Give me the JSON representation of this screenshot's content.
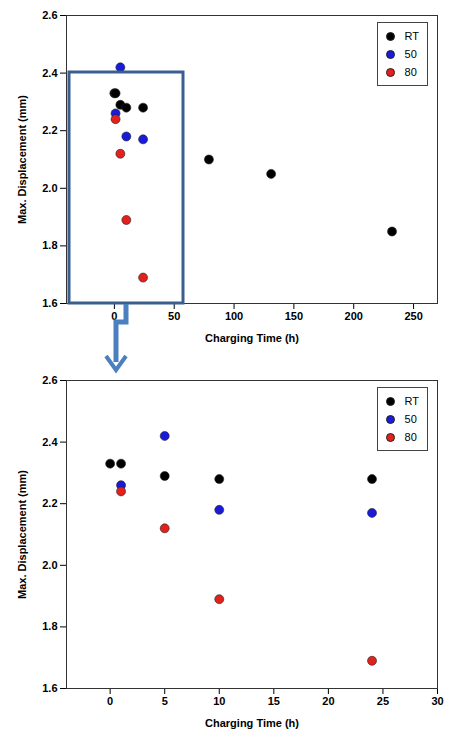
{
  "chart_data": [
    {
      "type": "scatter",
      "x_label": "Charging Time (h)",
      "y_label": "Max. Displacement (mm)",
      "xlim": [
        -40,
        270
      ],
      "xticks": [
        0,
        50,
        100,
        150,
        200,
        250
      ],
      "ylim": [
        1.6,
        2.6
      ],
      "yticks": [
        1.6,
        1.8,
        {
          "value": 2,
          "label": "2.0"
        },
        2.2,
        2.4,
        2.6
      ],
      "legend": "top-right",
      "marker": "circle",
      "series": [
        {
          "name": "RT",
          "color": "#000000",
          "x": [
            0,
            1,
            5,
            10,
            24,
            79,
            131,
            232
          ],
          "values": [
            2.33,
            2.33,
            2.29,
            2.28,
            2.28,
            2.1,
            2.05,
            1.85
          ]
        },
        {
          "name": "50",
          "color": "#1a1adb",
          "x": [
            1,
            5,
            10,
            24
          ],
          "values": [
            2.26,
            2.42,
            2.18,
            2.17
          ]
        },
        {
          "name": "80",
          "color": "#e3211c",
          "x": [
            1,
            5,
            10,
            24
          ],
          "values": [
            2.24,
            2.12,
            1.89,
            1.69
          ]
        }
      ]
    },
    {
      "type": "scatter",
      "x_label": "Charging Time (h)",
      "y_label": "Max. Displacement (mm)",
      "xlim": [
        -4,
        30
      ],
      "xticks": [
        0,
        5,
        10,
        15,
        20,
        25,
        30
      ],
      "ylim": [
        1.6,
        2.6
      ],
      "yticks": [
        1.6,
        1.8,
        {
          "value": 2,
          "label": "2.0"
        },
        2.2,
        2.4,
        2.6
      ],
      "legend": "top-right",
      "marker": "circle",
      "series": [
        {
          "name": "RT",
          "color": "#000000",
          "x": [
            0,
            1,
            5,
            10,
            24
          ],
          "values": [
            2.33,
            2.33,
            2.29,
            2.28,
            2.28
          ]
        },
        {
          "name": "50",
          "color": "#1a1adb",
          "x": [
            1,
            5,
            10,
            24
          ],
          "values": [
            2.26,
            2.42,
            2.18,
            2.17
          ]
        },
        {
          "name": "80",
          "color": "#e3211c",
          "x": [
            1,
            5,
            10,
            24
          ],
          "values": [
            2.24,
            2.12,
            1.89,
            1.69
          ]
        }
      ]
    }
  ]
}
